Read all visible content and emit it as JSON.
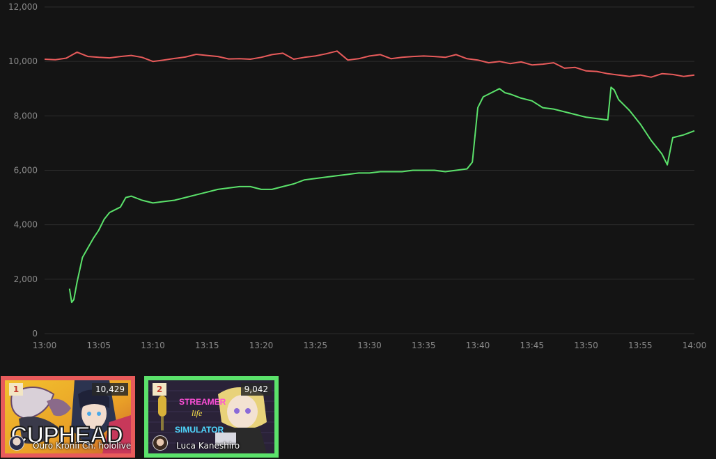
{
  "chart_data": {
    "type": "line",
    "ylim": [
      0,
      12000
    ],
    "y_ticks": [
      "0",
      "2,000",
      "4,000",
      "6,000",
      "8,000",
      "10,000",
      "12,000"
    ],
    "y_tick_values": [
      0,
      2000,
      4000,
      6000,
      8000,
      10000,
      12000
    ],
    "x_ticks": [
      "13:00",
      "13:05",
      "13:10",
      "13:15",
      "13:20",
      "13:25",
      "13:30",
      "13:35",
      "13:40",
      "13:45",
      "13:50",
      "13:55",
      "14:00"
    ],
    "x_range_minutes": [
      0,
      60
    ],
    "grid": true,
    "series": [
      {
        "color": "#e85b5b",
        "x": [
          0,
          1,
          2,
          3,
          4,
          5,
          6,
          7,
          8,
          9,
          10,
          11,
          12,
          13,
          14,
          15,
          16,
          17,
          18,
          19,
          20,
          21,
          22,
          23,
          24,
          25,
          26,
          27,
          28,
          29,
          30,
          31,
          32,
          33,
          34,
          35,
          36,
          37,
          38,
          39,
          40,
          41,
          42,
          43,
          44,
          45,
          46,
          47,
          48,
          49,
          50,
          51,
          52,
          53,
          54,
          55,
          56,
          57,
          58,
          59,
          60
        ],
        "values": [
          10080,
          10060,
          10120,
          10340,
          10180,
          10150,
          10130,
          10180,
          10220,
          10150,
          10000,
          10050,
          10110,
          10160,
          10260,
          10220,
          10180,
          10090,
          10100,
          10080,
          10150,
          10250,
          10300,
          10080,
          10150,
          10200,
          10280,
          10380,
          10050,
          10100,
          10200,
          10250,
          10100,
          10150,
          10180,
          10200,
          10180,
          10150,
          10250,
          10100,
          10050,
          9950,
          10000,
          9920,
          9980,
          9870,
          9900,
          9950,
          9750,
          9780,
          9650,
          9630,
          9550,
          9500,
          9450,
          9500,
          9420,
          9550,
          9520,
          9450,
          9500
        ]
      },
      {
        "color": "#5be26b",
        "x": [
          2.3,
          2.5,
          2.7,
          3,
          3.5,
          4,
          4.5,
          5,
          5.5,
          6,
          6.5,
          7,
          7.5,
          8,
          9,
          10,
          11,
          12,
          13,
          14,
          15,
          16,
          17,
          18,
          19,
          20,
          21,
          22,
          23,
          24,
          25,
          26,
          27,
          28,
          29,
          30,
          31,
          32,
          33,
          34,
          35,
          36,
          37,
          38,
          39,
          39.5,
          40,
          40.5,
          41,
          42,
          42.5,
          43,
          44,
          45,
          46,
          47,
          48,
          49,
          50,
          51,
          52,
          52.3,
          52.6,
          53,
          53.5,
          54,
          55,
          56,
          57,
          57.5,
          58,
          59,
          60
        ],
        "values": [
          1650,
          1150,
          1250,
          1900,
          2800,
          3150,
          3500,
          3800,
          4200,
          4450,
          4550,
          4650,
          5000,
          5050,
          4900,
          4800,
          4850,
          4900,
          5000,
          5100,
          5200,
          5300,
          5350,
          5400,
          5400,
          5300,
          5300,
          5400,
          5500,
          5650,
          5700,
          5750,
          5800,
          5850,
          5900,
          5900,
          5950,
          5950,
          5950,
          6000,
          6000,
          6000,
          5950,
          6000,
          6050,
          6300,
          8300,
          8700,
          8800,
          9000,
          8850,
          8800,
          8650,
          8550,
          8300,
          8250,
          8150,
          8050,
          7950,
          7900,
          7850,
          9050,
          8950,
          8600,
          8400,
          8200,
          7700,
          7100,
          6600,
          6200,
          7200,
          7300,
          7450
        ]
      }
    ]
  },
  "cards": [
    {
      "rank": "1",
      "viewers": "10,429",
      "name": "Ouro Kronii Ch. hololive-",
      "border_color": "#e85b5b",
      "game_art_text": "CUPHEAD"
    },
    {
      "rank": "2",
      "viewers": "9,042",
      "name": "Luca Kaneshiro",
      "border_color": "#5be26b",
      "game_art_lines": [
        "STREAMER",
        "life",
        "SIMULATOR"
      ]
    }
  ]
}
